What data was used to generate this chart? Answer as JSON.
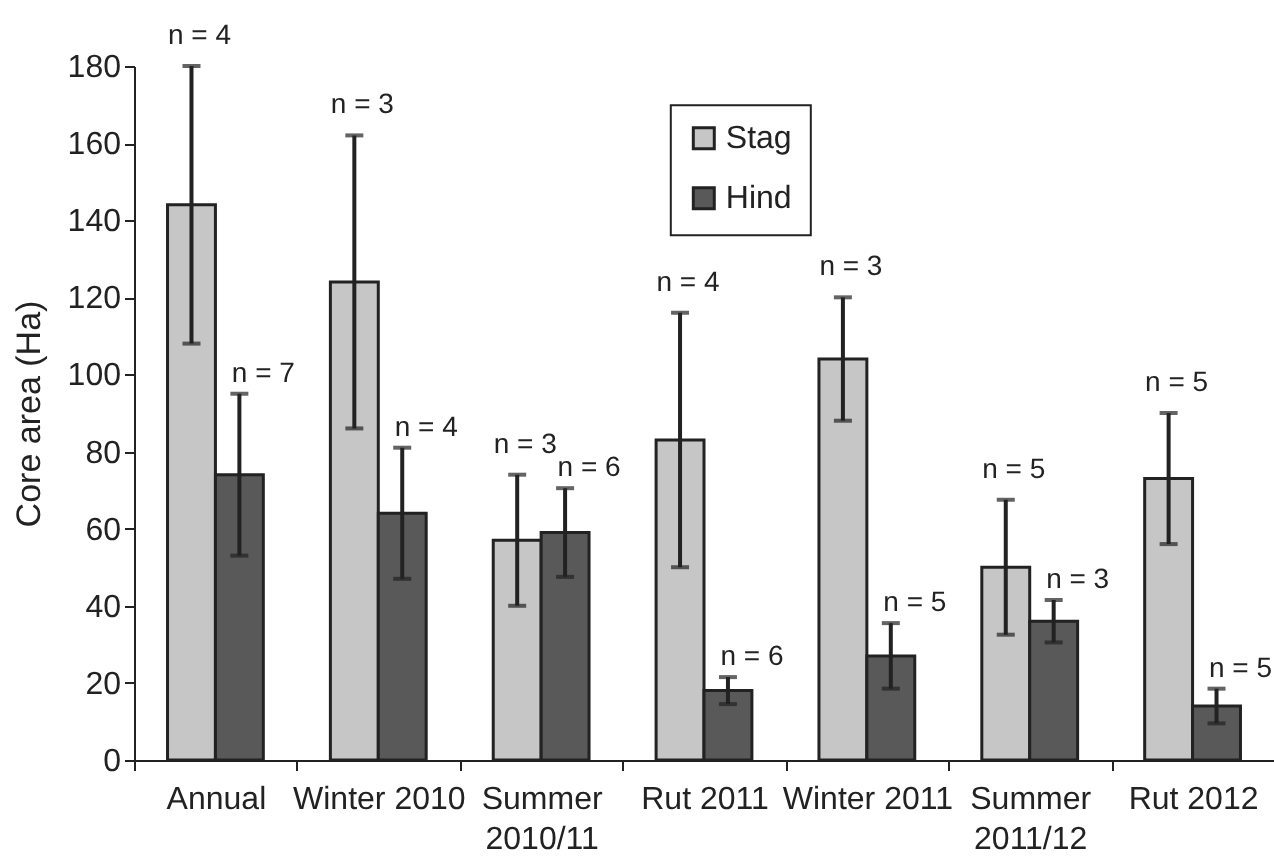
{
  "chart_data": {
    "type": "bar",
    "ylabel": "Core area (Ha)",
    "categories": [
      "Annual",
      "Winter 2010",
      "Summer 2010/11",
      "Rut 2011",
      "Winter 2011",
      "Summer 2011/12",
      "Rut 2012"
    ],
    "series": [
      {
        "name": "Stag",
        "color": "#c6c6c6",
        "values": [
          144,
          124,
          57,
          83,
          104,
          50,
          73
        ],
        "errors": [
          36,
          38,
          17,
          33,
          16,
          17.5,
          17
        ]
      },
      {
        "name": "Hind",
        "color": "#595959",
        "values": [
          74,
          64,
          59,
          18,
          27,
          36,
          14
        ],
        "errors": [
          21,
          17,
          11.5,
          3.5,
          8.5,
          5.5,
          4.5
        ]
      }
    ],
    "annotations": [
      "n = 4",
      "n = 7",
      "n = 3",
      "n = 4",
      "n = 3",
      "n = 6",
      "n = 4",
      "n = 6",
      "n = 3",
      "n = 5",
      "n = 5",
      "n = 3",
      "n = 5",
      "n = 5"
    ],
    "ylim": [
      0,
      180
    ],
    "yticks": [
      0,
      20,
      40,
      60,
      80,
      100,
      120,
      140,
      160,
      180
    ],
    "grid": false,
    "legend": "top"
  }
}
